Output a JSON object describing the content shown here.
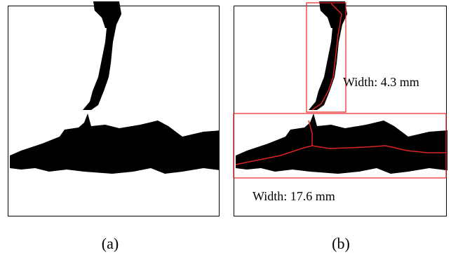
{
  "panels": [
    {
      "label": "(a)"
    },
    {
      "label": "(b)",
      "annotations": [
        "Width: 4.3 mm",
        "Width: 17.6 mm"
      ]
    }
  ]
}
